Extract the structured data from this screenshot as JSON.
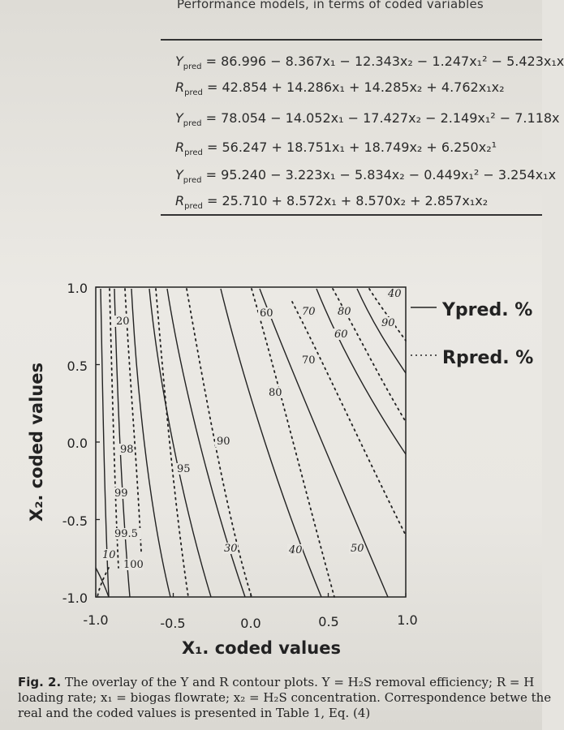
{
  "header": {
    "caption": "Performance models, in terms of coded variables"
  },
  "equations": [
    {
      "lhs": "Y",
      "sub": "pred",
      "rhs": "= 86.996 − 8.367x₁ − 12.343x₂ − 1.247x₁² − 5.423x₁x"
    },
    {
      "lhs": "R",
      "sub": "pred",
      "rhs": "= 42.854 + 14.286x₁ + 14.285x₂ + 4.762x₁x₂"
    },
    {
      "lhs": "Y",
      "sub": "pred",
      "rhs": "= 78.054 − 14.052x₁ − 17.427x₂ − 2.149x₁² − 7.118x"
    },
    {
      "lhs": "R",
      "sub": "pred",
      "rhs": "= 56.247 + 18.751x₁ + 18.749x₂ + 6.250x₂¹"
    },
    {
      "lhs": "Y",
      "sub": "pred",
      "rhs": "= 95.240 − 3.223x₁ − 5.834x₂ − 0.449x₁² − 3.254x₁x"
    },
    {
      "lhs": "R",
      "sub": "pred",
      "rhs": "= 25.710 + 8.572x₁ + 8.570x₂ + 2.857x₁x₂"
    }
  ],
  "chart_data": {
    "type": "contour",
    "xlabel": "X₁. coded values",
    "ylabel": "X₂. coded values",
    "xlim": [
      -1.0,
      1.0
    ],
    "ylim": [
      -1.0,
      1.0
    ],
    "x_ticks": [
      "-1.0",
      "-0.5",
      "0.0",
      "0.5",
      "1.0"
    ],
    "y_ticks": [
      "1.0",
      "0.5",
      "0.0",
      "-0.5",
      "-1.0"
    ],
    "legend": [
      {
        "name": "Ypred. %",
        "style": "solid"
      },
      {
        "name": "Rpred. %",
        "style": "dotted"
      }
    ],
    "legend_location": "right",
    "y_contour_levels": [
      "20",
      "60",
      "70",
      "80",
      "90",
      "95",
      "98",
      "99",
      "99.5",
      "100"
    ],
    "r_contour_levels": [
      "10",
      "30",
      "40",
      "50",
      "60",
      "70",
      "80",
      "90",
      "40"
    ]
  },
  "caption": {
    "label": "Fig. 2.",
    "text": "The overlay of the Y and R contour plots. Y = H₂S removal efficiency; R = H loading rate; x₁ = biogas flowrate; x₂ = H₂S concentration. Correspondence betwe the real and the coded values is presented in Table 1, Eq. (4)"
  }
}
